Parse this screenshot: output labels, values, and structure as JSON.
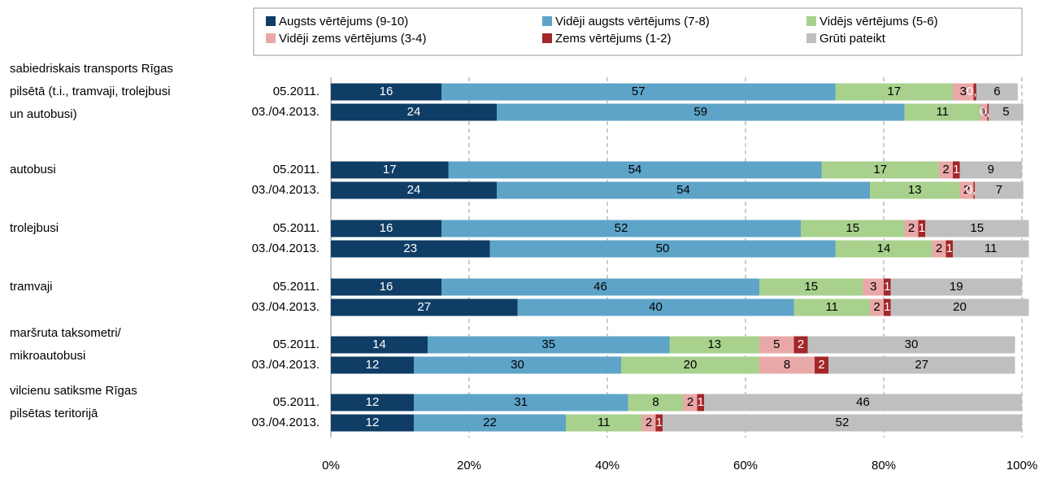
{
  "chart_data": {
    "type": "stacked-barh",
    "groups": [
      {
        "lines": [
          "sabiedriskais transports Rīgas",
          "pilsētā (t.i., tramvaji, trolejbusi",
          "un autobusi)"
        ]
      },
      {
        "lines": [
          "autobusi"
        ]
      },
      {
        "lines": [
          "trolejbusi"
        ]
      },
      {
        "lines": [
          "tramvaji"
        ]
      },
      {
        "lines": [
          "maršruta taksometri/",
          "mikroautobusi"
        ]
      },
      {
        "lines": [
          "vilcienu satiksme Rīgas",
          "pilsētas teritorijā"
        ]
      }
    ],
    "categories": [
      "05.2011.",
      "03./04.2013.",
      "05.2011.",
      "03./04.2013.",
      "05.2011.",
      "03./04.2013.",
      "05.2011.",
      "03./04.2013.",
      "05.2011.",
      "03./04.2013.",
      "05.2011.",
      "03./04.2013."
    ],
    "series": [
      {
        "name": "Augsts vērtējums (9-10)",
        "color": "#0f3d66",
        "values": [
          16,
          24,
          17,
          24,
          16,
          23,
          16,
          27,
          14,
          12,
          12,
          12
        ]
      },
      {
        "name": "Vidēji augsts vērtējums (7-8)",
        "color": "#5ea4c8",
        "values": [
          57,
          59,
          54,
          54,
          52,
          50,
          46,
          40,
          35,
          30,
          31,
          22
        ]
      },
      {
        "name": "Vidējs vērtējums (5-6)",
        "color": "#a8d18d",
        "values": [
          17,
          11,
          17,
          13,
          15,
          14,
          15,
          11,
          13,
          20,
          8,
          11
        ]
      },
      {
        "name": "Vidēji zems vērtējums (3-4)",
        "color": "#e9a8a8",
        "values": [
          3,
          1,
          2,
          2,
          2,
          2,
          3,
          2,
          5,
          8,
          2,
          2
        ]
      },
      {
        "name": "Zems vērtējums (1-2)",
        "color": "#a32628",
        "values": [
          0.4,
          0.2,
          1,
          0.2,
          1,
          1,
          1,
          1,
          2,
          2,
          1,
          1
        ],
        "value_labels": [
          "0,4",
          "0,2",
          null,
          "0,2",
          null,
          null,
          null,
          null,
          null,
          null,
          null,
          null
        ]
      },
      {
        "name": "Grūti pateikt",
        "color": "#bfbfbf",
        "values": [
          6,
          5,
          9,
          7,
          15,
          11,
          19,
          20,
          30,
          27,
          46,
          52
        ]
      }
    ],
    "xlim": [
      0,
      100
    ],
    "xticks": [
      {
        "value": 0,
        "label": "0%"
      },
      {
        "value": 20,
        "label": "20%"
      },
      {
        "value": 40,
        "label": "40%"
      },
      {
        "value": 60,
        "label": "60%"
      },
      {
        "value": 80,
        "label": "80%"
      },
      {
        "value": 100,
        "label": "100%"
      }
    ],
    "grid": true
  }
}
